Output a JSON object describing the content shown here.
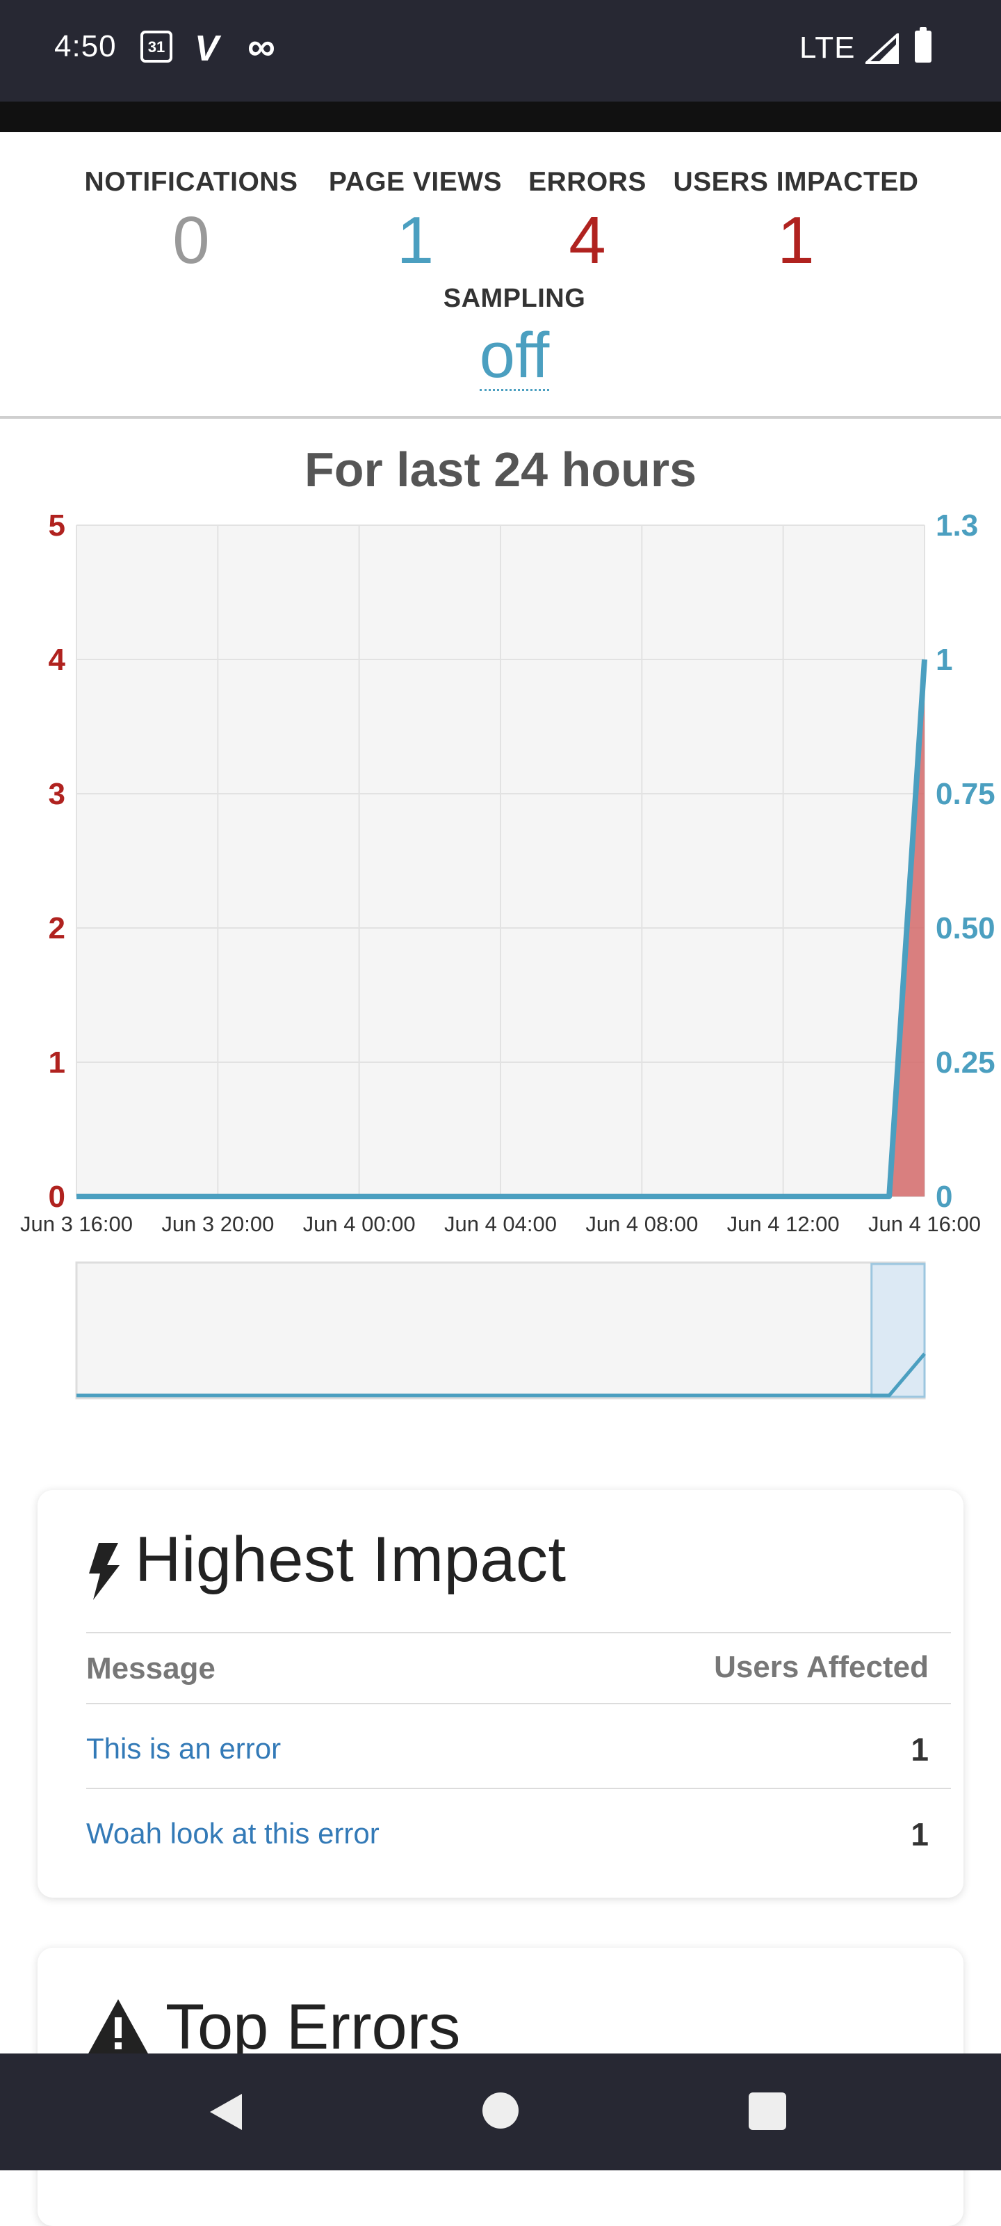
{
  "status_bar": {
    "time": "4:50",
    "calendar_day": "31",
    "network": "LTE",
    "icons": [
      "calendar-icon",
      "vimeo-icon",
      "infinity-icon",
      "signal-icon",
      "battery-icon"
    ]
  },
  "stats": {
    "notifications": {
      "label": "NOTIFICATIONS",
      "value": "0"
    },
    "page_views": {
      "label": "PAGE VIEWS",
      "value": "1"
    },
    "errors": {
      "label": "ERRORS",
      "value": "4"
    },
    "users_impacted": {
      "label": "USERS IMPACTED",
      "value": "1"
    },
    "sampling": {
      "label": "SAMPLING",
      "value": "off"
    }
  },
  "chart_data": {
    "type": "line",
    "title": "For last 24 hours",
    "x_tick_labels": [
      "Jun 3 16:00",
      "Jun 3 20:00",
      "Jun 4 00:00",
      "Jun 4 04:00",
      "Jun 4 08:00",
      "Jun 4 12:00",
      "Jun 4 16:00"
    ],
    "y_left": {
      "ticks": [
        "0",
        "1",
        "2",
        "3",
        "4",
        "5"
      ],
      "range": [
        0,
        5
      ]
    },
    "y_right": {
      "ticks": [
        "0",
        "0.25",
        "0.50",
        "0.75",
        "1",
        "1.3"
      ],
      "range": [
        0,
        1.25
      ]
    },
    "x_range_hours": [
      0,
      24
    ],
    "series": [
      {
        "axis": "left",
        "style": "area",
        "color": "#d46a6a",
        "points": [
          [
            0,
            0
          ],
          [
            23,
            0
          ],
          [
            24,
            4
          ]
        ]
      },
      {
        "axis": "right",
        "style": "line",
        "color": "#4b9fc0",
        "points": [
          [
            0,
            0
          ],
          [
            23,
            0
          ],
          [
            24,
            1
          ]
        ]
      }
    ],
    "grid": true,
    "navigator": {
      "selected_from_hours": 22.5,
      "selected_to_hours": 24
    }
  },
  "highest_impact": {
    "title": "Highest Impact",
    "col_message": "Message",
    "col_users": "Users Affected",
    "rows": [
      {
        "message": "This is an error",
        "users": "1"
      },
      {
        "message": "Woah look at this error",
        "users": "1"
      }
    ]
  },
  "top_errors": {
    "title": "Top Errors"
  },
  "colors": {
    "teal": "#4b9fc0",
    "red": "#b0221f",
    "gray": "#999999",
    "link": "#337ab7"
  }
}
